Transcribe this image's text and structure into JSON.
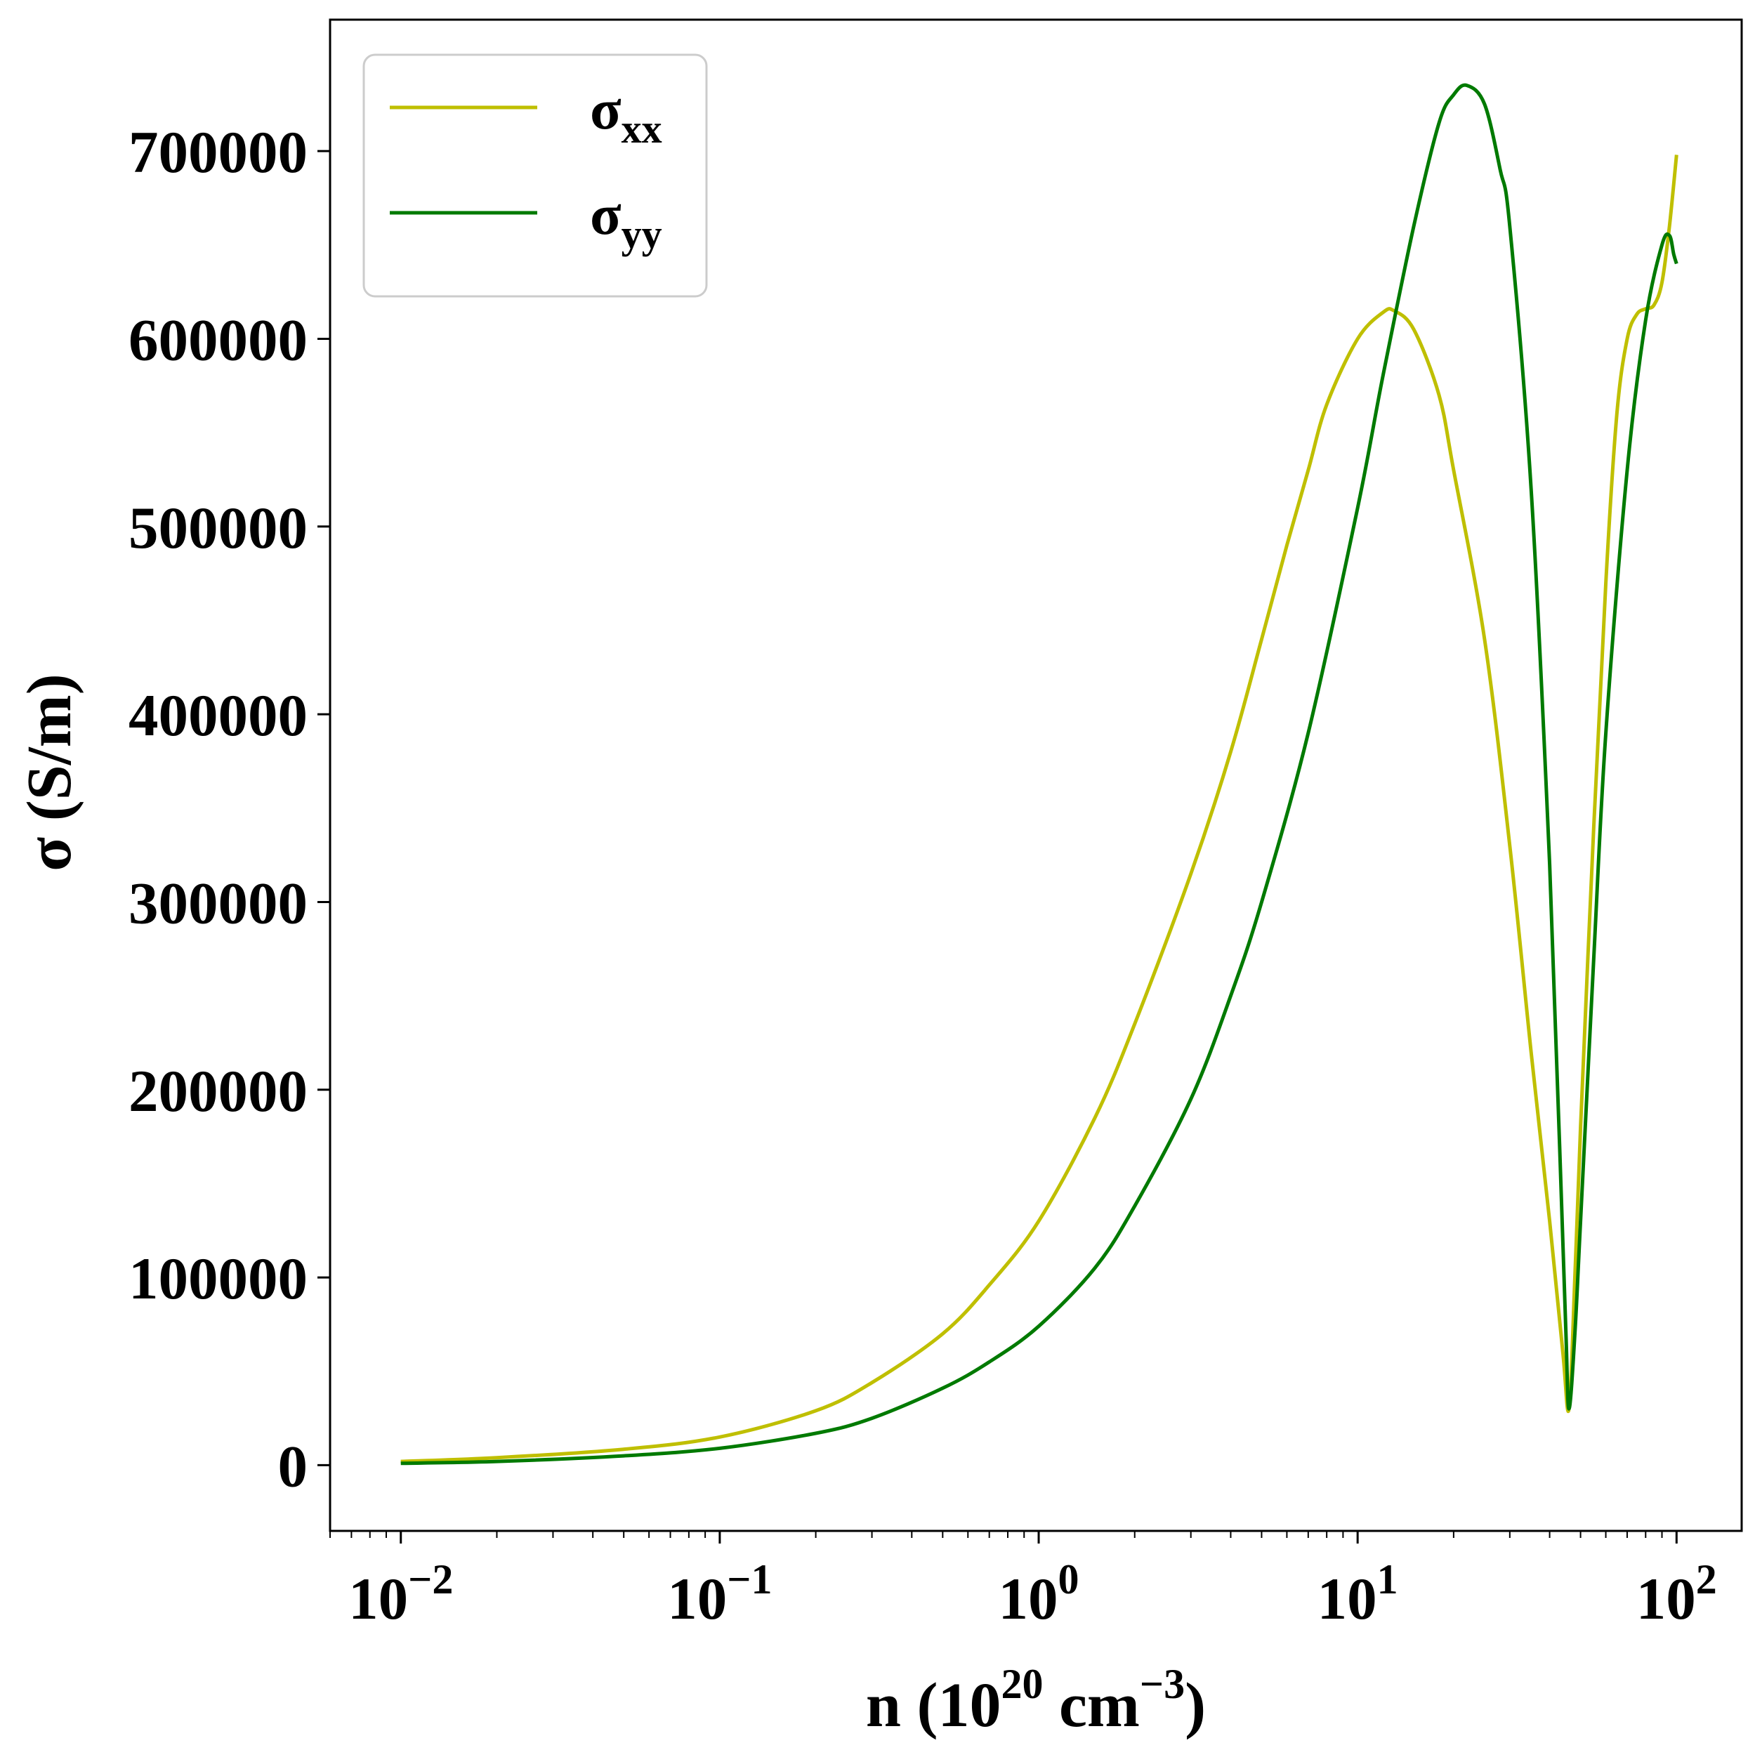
{
  "chart_data": {
    "type": "line",
    "xlabel": {
      "base": "n (10",
      "sup1": "20",
      "mid": " cm",
      "sup2": "−3",
      "end": ")"
    },
    "ylabel": "σ (S/m)",
    "x_scale": "log",
    "xlim": [
      0.006,
      160
    ],
    "ylim": [
      -35000,
      770000
    ],
    "grid": false,
    "legend_position": "upper-left",
    "x_ticks": [
      {
        "value": 0.01,
        "base": "10",
        "exp": "−2"
      },
      {
        "value": 0.1,
        "base": "10",
        "exp": "−1"
      },
      {
        "value": 1,
        "base": "10",
        "exp": "0"
      },
      {
        "value": 10,
        "base": "10",
        "exp": "1"
      },
      {
        "value": 100,
        "base": "10",
        "exp": "2"
      }
    ],
    "y_ticks": [
      {
        "value": 0,
        "label": "0"
      },
      {
        "value": 100000,
        "label": "100000"
      },
      {
        "value": 200000,
        "label": "200000"
      },
      {
        "value": 300000,
        "label": "300000"
      },
      {
        "value": 400000,
        "label": "400000"
      },
      {
        "value": 500000,
        "label": "500000"
      },
      {
        "value": 600000,
        "label": "600000"
      },
      {
        "value": 700000,
        "label": "700000"
      }
    ],
    "series": [
      {
        "name": "σ",
        "sub": "xx",
        "color": "#bfbf00",
        "points": [
          [
            0.01,
            2000
          ],
          [
            0.02,
            4000
          ],
          [
            0.05,
            8500
          ],
          [
            0.1,
            15000
          ],
          [
            0.2,
            29000
          ],
          [
            0.3,
            44000
          ],
          [
            0.5,
            70000
          ],
          [
            0.7,
            96000
          ],
          [
            1.0,
            130000
          ],
          [
            1.5,
            185000
          ],
          [
            2.0,
            235000
          ],
          [
            3.0,
            315000
          ],
          [
            4.0,
            380000
          ],
          [
            5.0,
            440000
          ],
          [
            6.0,
            490000
          ],
          [
            7.0,
            530000
          ],
          [
            8.0,
            565000
          ],
          [
            10.0,
            600000
          ],
          [
            12.0,
            614000
          ],
          [
            13.0,
            615000
          ],
          [
            15.0,
            605000
          ],
          [
            18.0,
            570000
          ],
          [
            20.0,
            530000
          ],
          [
            25.0,
            440000
          ],
          [
            30.0,
            330000
          ],
          [
            35.0,
            220000
          ],
          [
            40.0,
            130000
          ],
          [
            44.0,
            60000
          ],
          [
            46.0,
            30000
          ],
          [
            48.0,
            100000
          ],
          [
            50.0,
            180000
          ],
          [
            55.0,
            340000
          ],
          [
            60.0,
            470000
          ],
          [
            65.0,
            560000
          ],
          [
            70.0,
            600000
          ],
          [
            75.0,
            613000
          ],
          [
            80.0,
            616000
          ],
          [
            85.0,
            618000
          ],
          [
            90.0,
            630000
          ],
          [
            95.0,
            660000
          ],
          [
            100.0,
            698000
          ]
        ]
      },
      {
        "name": "σ",
        "sub": "yy",
        "color": "#007a00",
        "points": [
          [
            0.01,
            1000
          ],
          [
            0.02,
            2000
          ],
          [
            0.05,
            5000
          ],
          [
            0.1,
            9000
          ],
          [
            0.2,
            17000
          ],
          [
            0.3,
            25000
          ],
          [
            0.5,
            41000
          ],
          [
            0.7,
            55000
          ],
          [
            1.0,
            74000
          ],
          [
            1.5,
            105000
          ],
          [
            2.0,
            138000
          ],
          [
            3.0,
            195000
          ],
          [
            4.0,
            250000
          ],
          [
            5.0,
            300000
          ],
          [
            7.0,
            390000
          ],
          [
            10.0,
            510000
          ],
          [
            12.0,
            580000
          ],
          [
            15.0,
            660000
          ],
          [
            18.0,
            715000
          ],
          [
            20.0,
            730000
          ],
          [
            22.0,
            735000
          ],
          [
            25.0,
            725000
          ],
          [
            28.0,
            690000
          ],
          [
            30.0,
            660000
          ],
          [
            35.0,
            520000
          ],
          [
            40.0,
            320000
          ],
          [
            43.0,
            170000
          ],
          [
            45.0,
            70000
          ],
          [
            46.0,
            30000
          ],
          [
            48.0,
            70000
          ],
          [
            50.0,
            130000
          ],
          [
            55.0,
            270000
          ],
          [
            60.0,
            390000
          ],
          [
            70.0,
            530000
          ],
          [
            80.0,
            610000
          ],
          [
            90.0,
            650000
          ],
          [
            95.0,
            655000
          ],
          [
            98.0,
            645000
          ],
          [
            100.0,
            640000
          ]
        ]
      }
    ]
  }
}
